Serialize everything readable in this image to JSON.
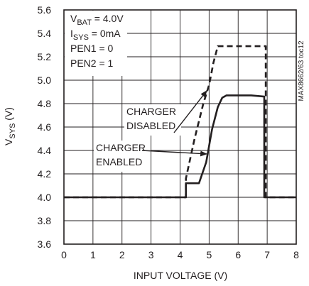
{
  "chart_data": {
    "type": "line",
    "xlabel": "INPUT VOLTAGE (V)",
    "ylabel": "V",
    "ylabel_subscript": "SYS",
    "ylabel_suffix": " (V)",
    "xlim": [
      0,
      8
    ],
    "ylim": [
      3.6,
      5.6
    ],
    "x_ticks": [
      0,
      1,
      2,
      3,
      4,
      5,
      6,
      7,
      8
    ],
    "y_ticks": [
      "3.6",
      "3.8",
      "4.0",
      "4.2",
      "4.4",
      "4.6",
      "4.8",
      "5.0",
      "5.2",
      "5.4",
      "5.6"
    ],
    "grid": true,
    "conditions": [
      {
        "main": "V",
        "sub": "BAT",
        "rest": " = 4.0V"
      },
      {
        "main": "I",
        "sub": "SYS",
        "rest": " = 0mA"
      },
      {
        "main": "PEN1 = 0",
        "sub": "",
        "rest": ""
      },
      {
        "main": "PEN2 = 1",
        "sub": "",
        "rest": ""
      }
    ],
    "side_note": "MAX8662/63 toc12",
    "series": [
      {
        "name_lines": [
          "CHARGER",
          "DISABLED"
        ],
        "style": "dashed",
        "color": "#231f20",
        "points": [
          [
            0,
            4.0
          ],
          [
            4.2,
            4.0
          ],
          [
            4.2,
            4.16
          ],
          [
            4.5,
            4.5
          ],
          [
            4.8,
            4.8
          ],
          [
            5.0,
            4.96
          ],
          [
            5.15,
            5.15
          ],
          [
            5.3,
            5.29
          ],
          [
            6.95,
            5.29
          ],
          [
            6.95,
            4.0
          ],
          [
            8,
            4.0
          ]
        ]
      },
      {
        "name_lines": [
          "CHARGER",
          "ENABLED"
        ],
        "style": "solid",
        "color": "#231f20",
        "points": [
          [
            0,
            4.0
          ],
          [
            4.2,
            4.0
          ],
          [
            4.2,
            4.12
          ],
          [
            4.65,
            4.12
          ],
          [
            4.9,
            4.3
          ],
          [
            5.1,
            4.58
          ],
          [
            5.3,
            4.77
          ],
          [
            5.45,
            4.85
          ],
          [
            5.6,
            4.87
          ],
          [
            6.45,
            4.87
          ],
          [
            6.9,
            4.86
          ],
          [
            6.9,
            4.0
          ],
          [
            8,
            4.0
          ]
        ]
      }
    ],
    "annotations": [
      {
        "series_index": 0,
        "arrow_to": [
          4.92,
          4.91
        ]
      },
      {
        "series_index": 1,
        "arrow_to": [
          4.92,
          4.37
        ]
      }
    ]
  }
}
